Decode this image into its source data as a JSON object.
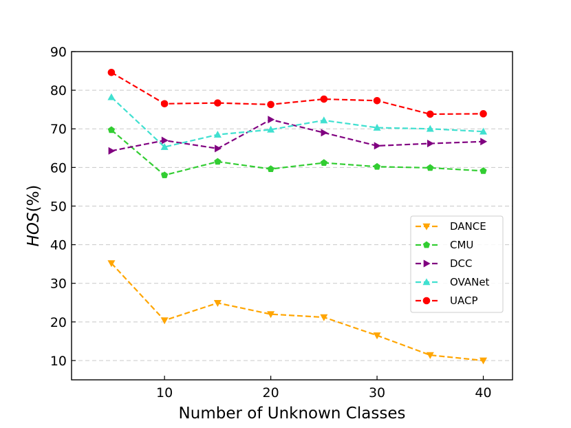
{
  "chart_data": {
    "type": "line",
    "title": "",
    "xlabel": "Number of Unknown Classes",
    "ylabel_italic": "HOS",
    "ylabel_suffix": "(%)",
    "xlim": [
      1.25,
      42.75
    ],
    "ylim": [
      5,
      90
    ],
    "xticks": [
      10,
      20,
      30,
      40
    ],
    "yticks": [
      10,
      20,
      30,
      40,
      50,
      60,
      70,
      80,
      90
    ],
    "grid": "horizontal dashed",
    "legend_position": "center-right",
    "x": [
      5,
      10,
      15,
      20,
      25,
      30,
      35,
      40
    ],
    "series": [
      {
        "name": "DANCE",
        "color": "#FFA500",
        "marker": "triangle-down",
        "values": [
          35.2,
          20.4,
          24.9,
          22.0,
          21.2,
          16.5,
          11.4,
          10.0
        ]
      },
      {
        "name": "CMU",
        "color": "#32CD32",
        "marker": "pentagon",
        "values": [
          69.7,
          58.0,
          61.5,
          59.6,
          61.2,
          60.2,
          59.9,
          59.1
        ]
      },
      {
        "name": "DCC",
        "color": "#800080",
        "marker": "triangle-right",
        "values": [
          64.3,
          67.0,
          64.9,
          72.4,
          69.0,
          65.6,
          66.2,
          66.7
        ]
      },
      {
        "name": "OVANet",
        "color": "#40E0D0",
        "marker": "triangle-up",
        "values": [
          78.2,
          65.3,
          68.5,
          69.8,
          72.2,
          70.3,
          70.0,
          69.3
        ]
      },
      {
        "name": "UACP",
        "color": "#FF0000",
        "marker": "circle",
        "values": [
          84.6,
          76.5,
          76.7,
          76.3,
          77.7,
          77.3,
          73.8,
          73.9
        ]
      }
    ]
  }
}
